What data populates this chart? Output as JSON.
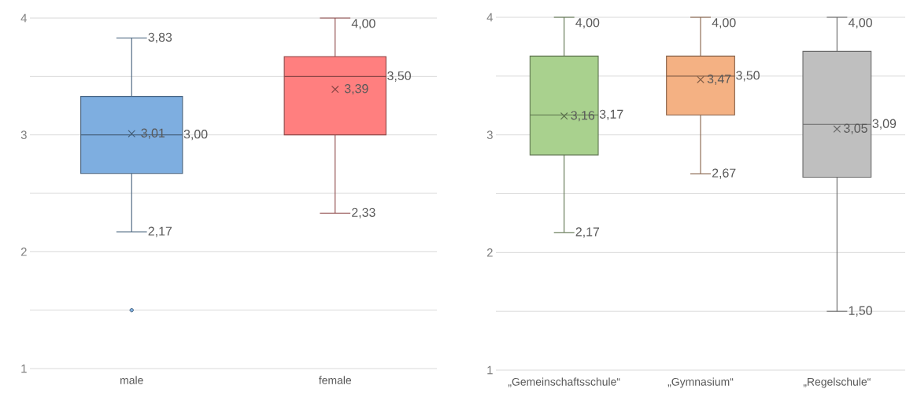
{
  "chart_data": [
    {
      "type": "box",
      "categories": [
        "male",
        "female"
      ],
      "colors": [
        "#7eaee0",
        "#ff7f7f"
      ],
      "boxes": [
        {
          "low": 2.17,
          "q1": 2.67,
          "median": 3.0,
          "q3": 3.33,
          "high": 3.83,
          "mean": 3.01,
          "outliers": [
            1.5
          ]
        },
        {
          "low": 2.33,
          "q1": 3.0,
          "median": 3.5,
          "q3": 3.67,
          "high": 4.0,
          "mean": 3.39
        }
      ],
      "ylim": [
        1,
        4
      ],
      "yticks": [
        1,
        {
          "value": 1.5,
          "label": null
        },
        2,
        {
          "value": 2.5,
          "label": null
        },
        3,
        {
          "value": 3.5,
          "label": null
        },
        4
      ],
      "grid": "y",
      "annotations": [
        "3,83",
        "3,01",
        "3,00",
        "2,17",
        "4,00",
        "3,39",
        "3,50",
        "2,33"
      ]
    },
    {
      "type": "box",
      "categories": [
        "„Gemeinschaftsschule“",
        "„Gymnasium“",
        "„Regelschule“"
      ],
      "colors": [
        "#a9d18e",
        "#f4b183",
        "#bfbfbf"
      ],
      "boxes": [
        {
          "low": 2.17,
          "q1": 2.83,
          "median": 3.17,
          "q3": 3.67,
          "high": 4.0,
          "mean": 3.16
        },
        {
          "low": 2.67,
          "q1": 3.17,
          "median": 3.5,
          "q3": 3.67,
          "high": 4.0,
          "mean": 3.47
        },
        {
          "low": 1.5,
          "q1": 2.64,
          "median": 3.09,
          "q3": 3.71,
          "high": 4.0,
          "mean": 3.05
        }
      ],
      "ylim": [
        1,
        4
      ],
      "yticks": [
        1,
        {
          "value": 1.5,
          "label": null
        },
        2,
        {
          "value": 2.5,
          "label": null
        },
        3,
        {
          "value": 3.5,
          "label": null
        },
        4
      ],
      "grid": "y",
      "annotations": [
        "4,00",
        "3,16",
        "3,17",
        "2,17",
        "4,00",
        "3,47",
        "3,50",
        "2,67",
        "4,00",
        "3,05",
        "3,09",
        "1,50"
      ]
    }
  ]
}
